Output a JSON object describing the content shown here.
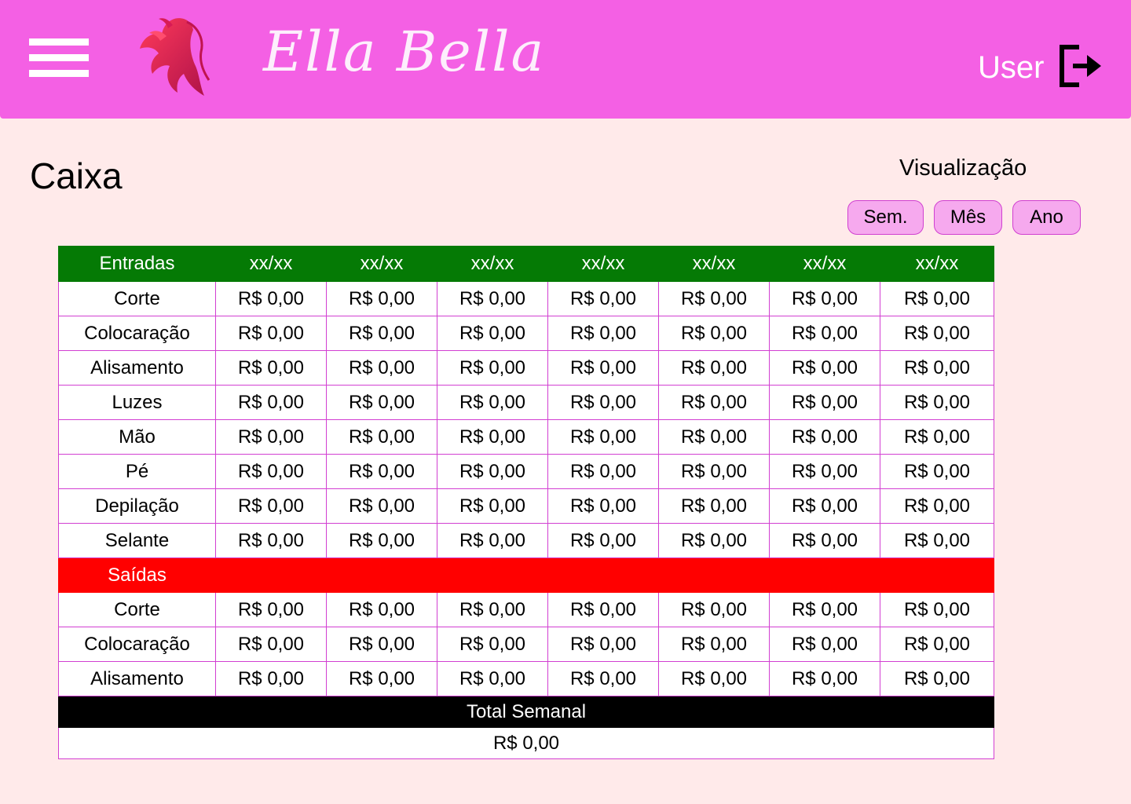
{
  "header": {
    "brand": "Ella Bella",
    "user_label": "User",
    "colors": {
      "bar": "#f460e4",
      "brand_text": "#ffffff"
    },
    "icons": {
      "menu": "hamburger-menu-icon",
      "logo": "woman-silhouette-logo",
      "logout": "logout-icon"
    }
  },
  "page": {
    "title": "Caixa",
    "view_label": "Visualização",
    "view_buttons": [
      "Sem.",
      "Mês",
      "Ano"
    ]
  },
  "table": {
    "entradas_header": "Entradas",
    "date_headers": [
      "xx/xx",
      "xx/xx",
      "xx/xx",
      "xx/xx",
      "xx/xx",
      "xx/xx",
      "xx/xx"
    ],
    "entradas_rows": [
      {
        "label": "Corte",
        "values": [
          "R$ 0,00",
          "R$ 0,00",
          "R$ 0,00",
          "R$ 0,00",
          "R$ 0,00",
          "R$ 0,00",
          "R$ 0,00"
        ]
      },
      {
        "label": "Colocaração",
        "values": [
          "R$ 0,00",
          "R$ 0,00",
          "R$ 0,00",
          "R$ 0,00",
          "R$ 0,00",
          "R$ 0,00",
          "R$ 0,00"
        ]
      },
      {
        "label": "Alisamento",
        "values": [
          "R$ 0,00",
          "R$ 0,00",
          "R$ 0,00",
          "R$ 0,00",
          "R$ 0,00",
          "R$ 0,00",
          "R$ 0,00"
        ]
      },
      {
        "label": "Luzes",
        "values": [
          "R$ 0,00",
          "R$ 0,00",
          "R$ 0,00",
          "R$ 0,00",
          "R$ 0,00",
          "R$ 0,00",
          "R$ 0,00"
        ]
      },
      {
        "label": "Mão",
        "values": [
          "R$ 0,00",
          "R$ 0,00",
          "R$ 0,00",
          "R$ 0,00",
          "R$ 0,00",
          "R$ 0,00",
          "R$ 0,00"
        ]
      },
      {
        "label": "Pé",
        "values": [
          "R$ 0,00",
          "R$ 0,00",
          "R$ 0,00",
          "R$ 0,00",
          "R$ 0,00",
          "R$ 0,00",
          "R$ 0,00"
        ]
      },
      {
        "label": "Depilação",
        "values": [
          "R$ 0,00",
          "R$ 0,00",
          "R$ 0,00",
          "R$ 0,00",
          "R$ 0,00",
          "R$ 0,00",
          "R$ 0,00"
        ]
      },
      {
        "label": "Selante",
        "values": [
          "R$ 0,00",
          "R$ 0,00",
          "R$ 0,00",
          "R$ 0,00",
          "R$ 0,00",
          "R$ 0,00",
          "R$ 0,00"
        ]
      }
    ],
    "saidas_header": "Saídas",
    "saidas_rows": [
      {
        "label": "Corte",
        "values": [
          "R$ 0,00",
          "R$ 0,00",
          "R$ 0,00",
          "R$ 0,00",
          "R$ 0,00",
          "R$ 0,00",
          "R$ 0,00"
        ]
      },
      {
        "label": "Colocaração",
        "values": [
          "R$ 0,00",
          "R$ 0,00",
          "R$ 0,00",
          "R$ 0,00",
          "R$ 0,00",
          "R$ 0,00",
          "R$ 0,00"
        ]
      },
      {
        "label": "Alisamento",
        "values": [
          "R$ 0,00",
          "R$ 0,00",
          "R$ 0,00",
          "R$ 0,00",
          "R$ 0,00",
          "R$ 0,00",
          "R$ 0,00"
        ]
      }
    ],
    "total_label": "Total Semanal",
    "total_value": "R$ 0,00",
    "colors": {
      "entradas": "#057a05",
      "saidas": "#ff0000",
      "total": "#000000",
      "grid": "#d23fd2"
    }
  }
}
